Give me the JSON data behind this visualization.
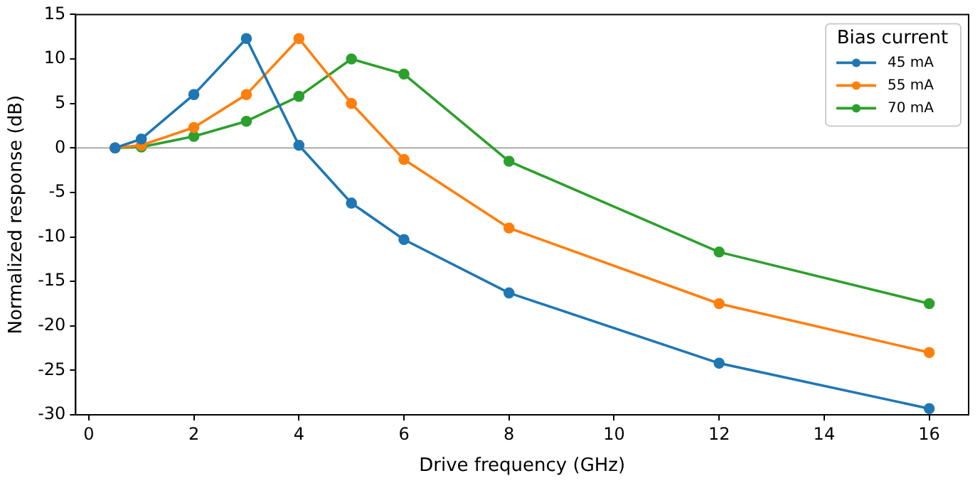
{
  "chart_data": {
    "type": "line",
    "xlabel": "Drive frequency (GHz)",
    "ylabel": "Normalized response (dB)",
    "legend_title": "Bias current",
    "x": [
      0.5,
      1,
      2,
      3,
      4,
      5,
      6,
      8,
      12,
      16
    ],
    "series": [
      {
        "name": "45 mA",
        "color": "#1f77b4",
        "values": [
          0,
          1.0,
          6.0,
          12.3,
          0.3,
          -6.2,
          -10.3,
          -16.3,
          -24.2,
          -29.3
        ]
      },
      {
        "name": "55 mA",
        "color": "#ff7f0e",
        "values": [
          0,
          0.3,
          2.3,
          6.0,
          12.3,
          5.0,
          -1.3,
          -9.0,
          -17.5,
          -23.0
        ]
      },
      {
        "name": "70 mA",
        "color": "#2ca02c",
        "values": [
          0,
          0.1,
          1.3,
          3.0,
          5.8,
          10.0,
          8.3,
          -1.5,
          -11.7,
          -17.5
        ]
      }
    ],
    "xlim": [
      -0.25,
      16.75
    ],
    "xticks": [
      0,
      2,
      4,
      6,
      8,
      10,
      12,
      14,
      16
    ],
    "ylim": [
      -30,
      15
    ],
    "yticks": [
      -30,
      -25,
      -20,
      -15,
      -10,
      -5,
      0,
      5,
      10,
      15
    ],
    "ref_lines": [
      {
        "axis": "y",
        "value": 0,
        "color": "#aaaaaa"
      }
    ],
    "grid": false,
    "legend": "top right",
    "marker": "circle",
    "line_style": "solid"
  }
}
